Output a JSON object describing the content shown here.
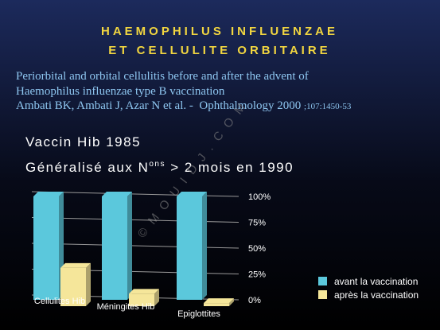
{
  "slide": {
    "title": [
      "HAEMOPHILUS INFLUENZAE",
      "ET CELLULITE ORBITAIRE"
    ],
    "reference": [
      "Periorbital and orbital cellulitis before and after the advent of",
      "Haemophilus influenzae type B vaccination",
      "Ambati BK, Ambati J, Azar N et al. -  Ophthalmology 2000 ",
      ";107:1450-53"
    ],
    "bullets": [
      "Vaccin Hib 1985",
      "Généralisé aux N",
      "ons",
      " > 2 mois en 1990"
    ],
    "watermark": "© M O U I D J . C O M"
  },
  "chart_data": {
    "type": "bar3d",
    "categories": [
      "Cellulites Hib",
      "Méningites Hib",
      "Epiglottites"
    ],
    "series": [
      {
        "name": "avant la vaccination",
        "color": "#5bc8dc",
        "values": [
          100,
          100,
          100
        ]
      },
      {
        "name": "après la vaccination",
        "color": "#f5e69a",
        "values": [
          37,
          12,
          3
        ]
      }
    ],
    "ylim": [
      0,
      100
    ],
    "yticks": [
      {
        "value": 0,
        "label": "0%"
      },
      {
        "value": 25,
        "label": "25%"
      },
      {
        "value": 50,
        "label": "50%"
      },
      {
        "value": 75,
        "label": "75%"
      },
      {
        "value": 100,
        "label": "100%"
      }
    ],
    "grid": true,
    "legend": "lower-right"
  }
}
